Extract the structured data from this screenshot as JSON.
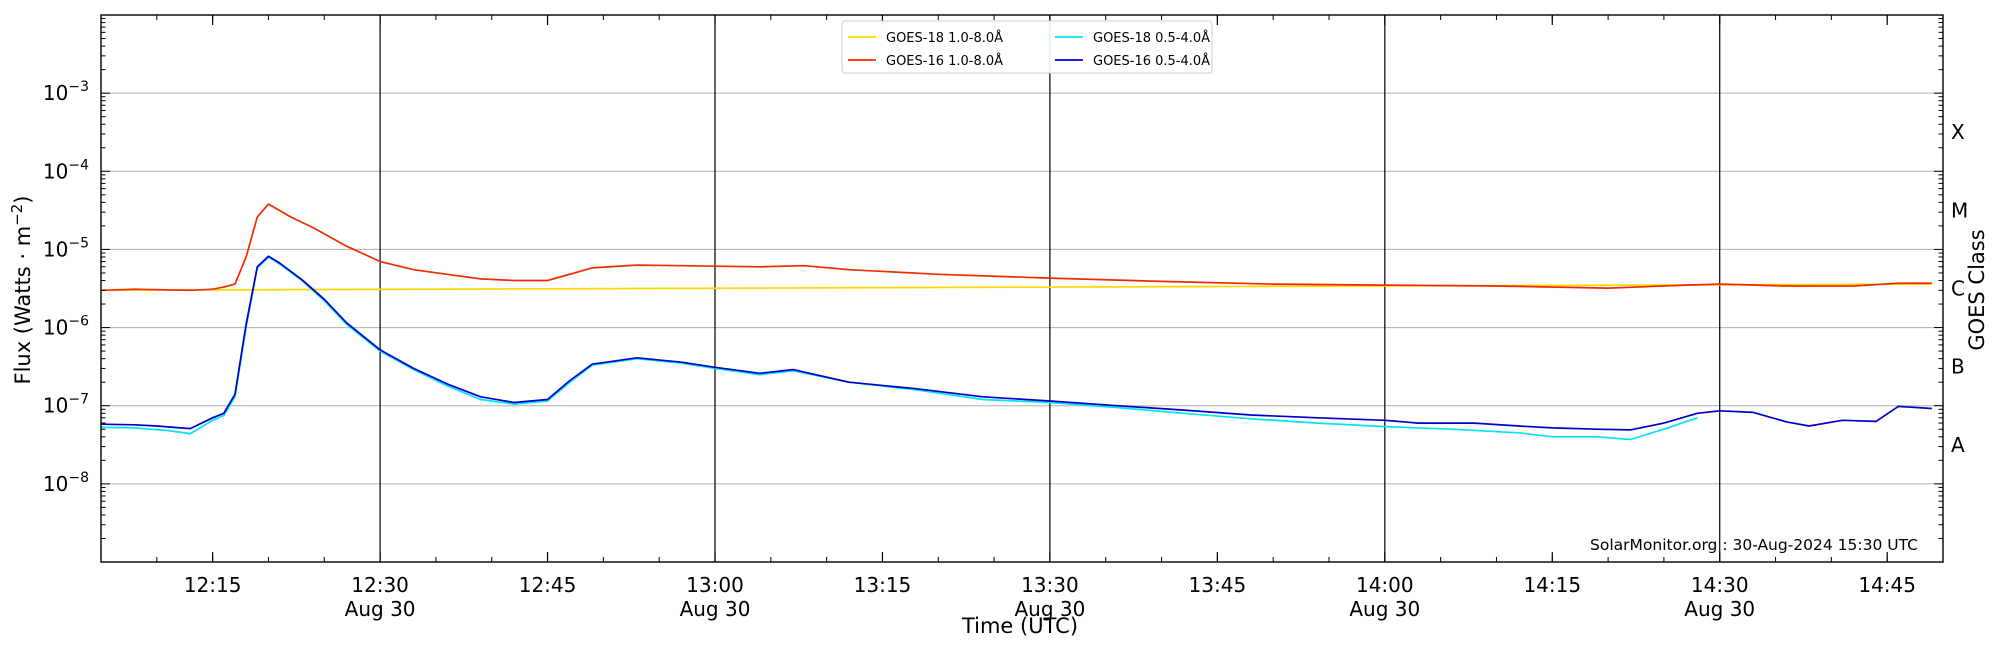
{
  "chart_data": {
    "type": "line",
    "xlabel": "Time (UTC)",
    "ylabel": "Flux (Watts · m⁻²)",
    "ylabel_parts": {
      "main": "Flux (Watts · m",
      "exp": "−2",
      "close": ")"
    },
    "y_scale": "log",
    "ylim": [
      1e-09,
      0.01
    ],
    "xlim": [
      "12:05",
      "14:50"
    ],
    "y_ticks": [
      {
        "value": 1e-08,
        "base": "10",
        "exp": "−8"
      },
      {
        "value": 1e-07,
        "base": "10",
        "exp": "−7"
      },
      {
        "value": 1e-06,
        "base": "10",
        "exp": "−6"
      },
      {
        "value": 1e-05,
        "base": "10",
        "exp": "−5"
      },
      {
        "value": 0.0001,
        "base": "10",
        "exp": "−4"
      },
      {
        "value": 0.001,
        "base": "10",
        "exp": "−3"
      }
    ],
    "x_ticks": [
      {
        "time": "12:15",
        "label": "12:15",
        "sub": ""
      },
      {
        "time": "12:30",
        "label": "12:30",
        "sub": "Aug 30"
      },
      {
        "time": "12:45",
        "label": "12:45",
        "sub": ""
      },
      {
        "time": "13:00",
        "label": "13:00",
        "sub": "Aug 30"
      },
      {
        "time": "13:15",
        "label": "13:15",
        "sub": ""
      },
      {
        "time": "13:30",
        "label": "13:30",
        "sub": "Aug 30"
      },
      {
        "time": "13:45",
        "label": "13:45",
        "sub": ""
      },
      {
        "time": "14:00",
        "label": "14:00",
        "sub": "Aug 30"
      },
      {
        "time": "14:15",
        "label": "14:15",
        "sub": ""
      },
      {
        "time": "14:30",
        "label": "14:30",
        "sub": "Aug 30"
      },
      {
        "time": "14:45",
        "label": "14:45",
        "sub": ""
      }
    ],
    "vertical_lines": [
      "12:30",
      "13:00",
      "13:30",
      "14:00",
      "14:30"
    ],
    "grid": "horizontal",
    "right_axis": {
      "label": "GOES Class",
      "classes": [
        {
          "label": "A",
          "value": 3.16e-08
        },
        {
          "label": "B",
          "value": 3.16e-07
        },
        {
          "label": "C",
          "value": 3.16e-06
        },
        {
          "label": "M",
          "value": 3.16e-05
        },
        {
          "label": "X",
          "value": 0.000316
        }
      ]
    },
    "legend_position": "top-center",
    "annotation": "SolarMonitor.org : 30-Aug-2024 15:30 UTC",
    "series": [
      {
        "name": "GOES-18 1.0-8.0Å",
        "color": "#ffd700",
        "points": [
          [
            "12:05",
            3e-06
          ],
          [
            "14:49",
            3.6e-06
          ]
        ]
      },
      {
        "name": "GOES-18 0.5-4.0Å",
        "color": "#00e5ee",
        "points": [
          [
            "12:05",
            5.3e-08
          ],
          [
            "12:08",
            5.2e-08
          ],
          [
            "12:11",
            4.8e-08
          ],
          [
            "12:13",
            4.4e-08
          ],
          [
            "12:15",
            6.5e-08
          ],
          [
            "12:16",
            7.5e-08
          ],
          [
            "12:17",
            1.3e-07
          ],
          [
            "12:18",
            1e-06
          ],
          [
            "12:19",
            5.8e-06
          ],
          [
            "12:20",
            8e-06
          ],
          [
            "12:21",
            6.5e-06
          ],
          [
            "12:23",
            4e-06
          ],
          [
            "12:25",
            2.2e-06
          ],
          [
            "12:27",
            1.1e-06
          ],
          [
            "12:30",
            5e-07
          ],
          [
            "12:33",
            2.9e-07
          ],
          [
            "12:36",
            1.8e-07
          ],
          [
            "12:39",
            1.2e-07
          ],
          [
            "12:42",
            1.05e-07
          ],
          [
            "12:45",
            1.15e-07
          ],
          [
            "12:47",
            2e-07
          ],
          [
            "12:49",
            3.3e-07
          ],
          [
            "12:53",
            4e-07
          ],
          [
            "12:57",
            3.5e-07
          ],
          [
            "13:00",
            3e-07
          ],
          [
            "13:04",
            2.5e-07
          ],
          [
            "13:07",
            2.8e-07
          ],
          [
            "13:12",
            2e-07
          ],
          [
            "13:18",
            1.6e-07
          ],
          [
            "13:24",
            1.2e-07
          ],
          [
            "13:30",
            1.1e-07
          ],
          [
            "13:36",
            9.5e-08
          ],
          [
            "13:42",
            8e-08
          ],
          [
            "13:48",
            6.8e-08
          ],
          [
            "13:54",
            6e-08
          ],
          [
            "14:00",
            5.4e-08
          ],
          [
            "14:06",
            5e-08
          ],
          [
            "14:12",
            4.5e-08
          ],
          [
            "14:15",
            4e-08
          ],
          [
            "14:19",
            4e-08
          ],
          [
            "14:22",
            3.7e-08
          ],
          [
            "14:25",
            5e-08
          ],
          [
            "14:28",
            7e-08
          ]
        ]
      },
      {
        "name": "GOES-16 1.0-8.0Å",
        "color": "#ee2c00",
        "points": [
          [
            "12:05",
            3e-06
          ],
          [
            "12:08",
            3.1e-06
          ],
          [
            "12:13",
            3e-06
          ],
          [
            "12:15",
            3.1e-06
          ],
          [
            "12:16",
            3.3e-06
          ],
          [
            "12:17",
            3.6e-06
          ],
          [
            "12:18",
            8e-06
          ],
          [
            "12:19",
            2.6e-05
          ],
          [
            "12:20",
            3.8e-05
          ],
          [
            "12:22",
            2.6e-05
          ],
          [
            "12:24",
            1.9e-05
          ],
          [
            "12:27",
            1.1e-05
          ],
          [
            "12:30",
            7e-06
          ],
          [
            "12:33",
            5.5e-06
          ],
          [
            "12:36",
            4.8e-06
          ],
          [
            "12:39",
            4.2e-06
          ],
          [
            "12:42",
            4e-06
          ],
          [
            "12:45",
            4e-06
          ],
          [
            "12:49",
            5.8e-06
          ],
          [
            "12:53",
            6.3e-06
          ],
          [
            "12:57",
            6.2e-06
          ],
          [
            "13:00",
            6.1e-06
          ],
          [
            "13:04",
            6e-06
          ],
          [
            "13:08",
            6.2e-06
          ],
          [
            "13:12",
            5.5e-06
          ],
          [
            "13:20",
            4.8e-06
          ],
          [
            "13:30",
            4.3e-06
          ],
          [
            "13:40",
            3.9e-06
          ],
          [
            "13:50",
            3.6e-06
          ],
          [
            "14:00",
            3.5e-06
          ],
          [
            "14:10",
            3.4e-06
          ],
          [
            "14:20",
            3.2e-06
          ],
          [
            "14:27",
            3.5e-06
          ],
          [
            "14:30",
            3.6e-06
          ],
          [
            "14:36",
            3.4e-06
          ],
          [
            "14:42",
            3.4e-06
          ],
          [
            "14:46",
            3.7e-06
          ],
          [
            "14:49",
            3.7e-06
          ]
        ]
      },
      {
        "name": "GOES-16 0.5-4.0Å",
        "color": "#0000cd",
        "points": [
          [
            "12:05",
            5.8e-08
          ],
          [
            "12:08",
            5.7e-08
          ],
          [
            "12:10",
            5.5e-08
          ],
          [
            "12:13",
            5.1e-08
          ],
          [
            "12:15",
            7e-08
          ],
          [
            "12:16",
            8e-08
          ],
          [
            "12:17",
            1.4e-07
          ],
          [
            "12:18",
            1.1e-06
          ],
          [
            "12:19",
            6e-06
          ],
          [
            "12:20",
            8.2e-06
          ],
          [
            "12:21",
            6.7e-06
          ],
          [
            "12:23",
            4.1e-06
          ],
          [
            "12:25",
            2.3e-06
          ],
          [
            "12:27",
            1.15e-06
          ],
          [
            "12:30",
            5.2e-07
          ],
          [
            "12:33",
            3e-07
          ],
          [
            "12:36",
            1.9e-07
          ],
          [
            "12:39",
            1.3e-07
          ],
          [
            "12:42",
            1.1e-07
          ],
          [
            "12:45",
            1.2e-07
          ],
          [
            "12:47",
            2.1e-07
          ],
          [
            "12:49",
            3.4e-07
          ],
          [
            "12:53",
            4.1e-07
          ],
          [
            "12:57",
            3.6e-07
          ],
          [
            "13:00",
            3.1e-07
          ],
          [
            "13:04",
            2.6e-07
          ],
          [
            "13:07",
            2.9e-07
          ],
          [
            "13:12",
            2e-07
          ],
          [
            "13:18",
            1.65e-07
          ],
          [
            "13:24",
            1.3e-07
          ],
          [
            "13:30",
            1.15e-07
          ],
          [
            "13:36",
            1e-07
          ],
          [
            "13:42",
            8.8e-08
          ],
          [
            "13:48",
            7.6e-08
          ],
          [
            "13:54",
            7e-08
          ],
          [
            "14:00",
            6.5e-08
          ],
          [
            "14:03",
            6e-08
          ],
          [
            "14:08",
            6e-08
          ],
          [
            "14:12",
            5.5e-08
          ],
          [
            "14:15",
            5.2e-08
          ],
          [
            "14:19",
            5e-08
          ],
          [
            "14:22",
            4.9e-08
          ],
          [
            "14:25",
            6e-08
          ],
          [
            "14:28",
            8e-08
          ],
          [
            "14:30",
            8.6e-08
          ],
          [
            "14:33",
            8.2e-08
          ],
          [
            "14:36",
            6.2e-08
          ],
          [
            "14:38",
            5.5e-08
          ],
          [
            "14:41",
            6.5e-08
          ],
          [
            "14:44",
            6.3e-08
          ],
          [
            "14:46",
            9.8e-08
          ],
          [
            "14:49",
            9.2e-08
          ]
        ]
      }
    ]
  }
}
